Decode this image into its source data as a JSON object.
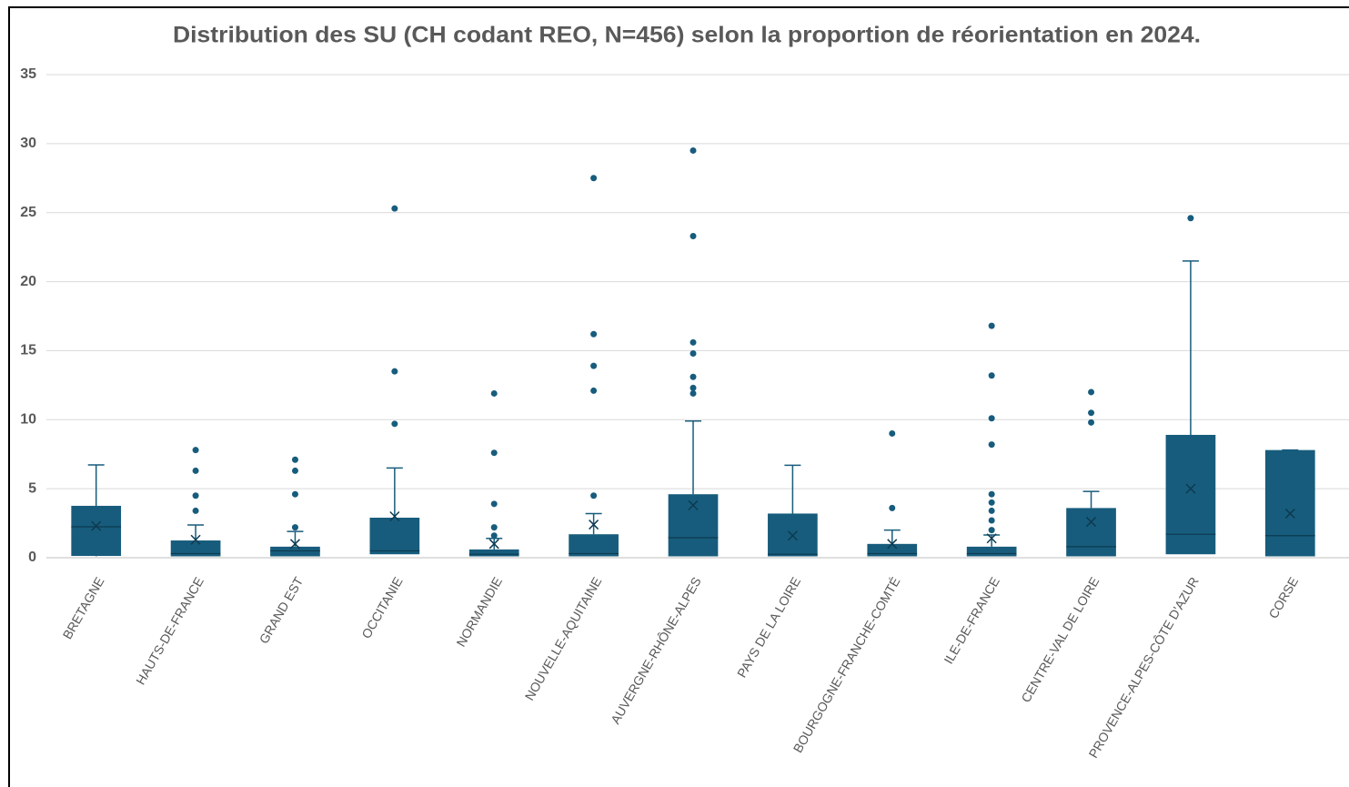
{
  "chart_data": {
    "type": "box",
    "title": "Distribution des SU (CH codant REO, N=456) selon la proportion de réorientation en 2024.",
    "color": "#175c7c",
    "grid": true,
    "ylim": [
      0,
      35
    ],
    "yticks": [
      0,
      5,
      10,
      15,
      20,
      25,
      30,
      35
    ],
    "categories": [
      "BRETAGNE",
      "HAUTS-DE-FRANCE",
      "GRAND EST",
      "OCCITANIE",
      "NORMANDIE",
      "NOUVELLE-AQUITAINE",
      "AUVERGNE-RHÔNE-ALPES",
      "PAYS DE LA LOIRE",
      "BOURGOGNE-FRANCHE-COMTÉ",
      "ILE-DE-FRANCE",
      "CENTRE-VAL DE LOIRE",
      "PROVENCE-ALPES-CÔTE D'AZUR",
      "CORSE"
    ],
    "boxes": [
      {
        "min": 0.1,
        "q1": 0.13,
        "median": 2.24,
        "q3": 3.76,
        "max": 6.72,
        "mean": 2.3,
        "outliers": []
      },
      {
        "min": 0.1,
        "q1": 0.1,
        "median": 0.3,
        "q3": 1.25,
        "max": 2.37,
        "mean": 1.3,
        "outliers": [
          7.8,
          6.3,
          4.5,
          3.4
        ]
      },
      {
        "min": 0.1,
        "q1": 0.1,
        "median": 0.5,
        "q3": 0.8,
        "max": 1.9,
        "mean": 1.0,
        "outliers": [
          7.1,
          6.3,
          4.6,
          2.2
        ]
      },
      {
        "min": 0.25,
        "q1": 0.25,
        "median": 0.5,
        "q3": 2.9,
        "max": 6.5,
        "mean": 3.0,
        "outliers": [
          25.3,
          13.5,
          9.7
        ]
      },
      {
        "min": 0.1,
        "q1": 0.1,
        "median": 0.25,
        "q3": 0.6,
        "max": 1.4,
        "mean": 1.0,
        "outliers": [
          11.9,
          7.6,
          3.9,
          2.2,
          1.6
        ]
      },
      {
        "min": 0.1,
        "q1": 0.1,
        "median": 0.3,
        "q3": 1.7,
        "max": 3.2,
        "mean": 2.4,
        "outliers": [
          27.5,
          16.2,
          13.9,
          12.1,
          4.5
        ]
      },
      {
        "min": 0.1,
        "q1": 0.1,
        "median": 1.45,
        "q3": 4.6,
        "max": 9.9,
        "mean": 3.8,
        "outliers": [
          29.5,
          23.3,
          15.6,
          14.8,
          13.1,
          12.3,
          11.9
        ]
      },
      {
        "min": 0.1,
        "q1": 0.1,
        "median": 0.25,
        "q3": 3.2,
        "max": 6.7,
        "mean": 1.6,
        "outliers": []
      },
      {
        "min": 0.1,
        "q1": 0.1,
        "median": 0.3,
        "q3": 1.0,
        "max": 2.0,
        "mean": 1.0,
        "outliers": [
          9.0,
          3.6
        ]
      },
      {
        "min": 0.1,
        "q1": 0.1,
        "median": 0.3,
        "q3": 0.8,
        "max": 1.65,
        "mean": 1.4,
        "outliers": [
          16.8,
          13.2,
          10.1,
          8.2,
          4.6,
          4.0,
          3.4,
          2.7,
          2.0
        ]
      },
      {
        "min": 0.1,
        "q1": 0.1,
        "median": 0.8,
        "q3": 3.6,
        "max": 4.8,
        "mean": 2.6,
        "outliers": [
          12.0,
          10.5,
          9.8
        ]
      },
      {
        "min": 0.25,
        "q1": 0.25,
        "median": 1.7,
        "q3": 8.9,
        "max": 21.5,
        "mean": 5.0,
        "outliers": [
          24.6
        ]
      },
      {
        "min": 0.1,
        "q1": 0.1,
        "median": 1.6,
        "q3": 7.8,
        "max": 7.8,
        "mean": 3.2,
        "outliers": []
      }
    ]
  }
}
